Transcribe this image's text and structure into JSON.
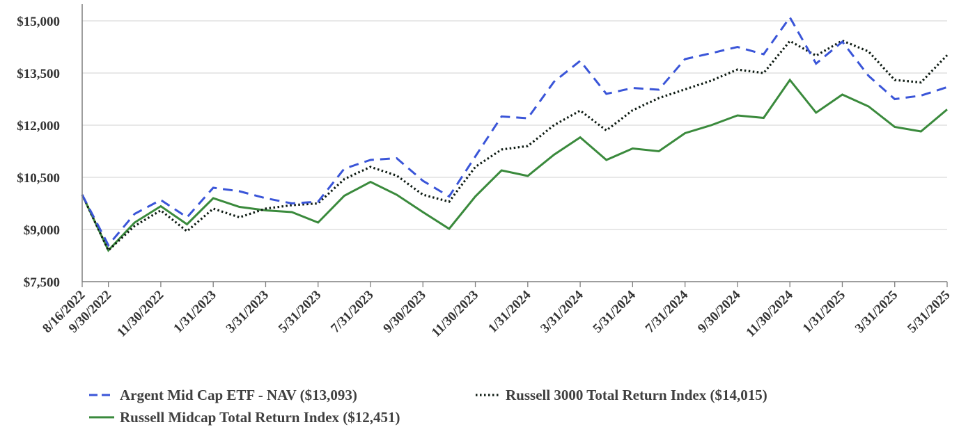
{
  "chart_data": {
    "type": "line",
    "x": [
      "8/16/2022",
      "9/30/2022",
      "10/31/2022",
      "11/30/2022",
      "12/31/2022",
      "1/31/2023",
      "2/28/2023",
      "3/31/2023",
      "4/30/2023",
      "5/31/2023",
      "6/30/2023",
      "7/31/2023",
      "8/31/2023",
      "9/30/2023",
      "10/31/2023",
      "11/30/2023",
      "12/31/2023",
      "1/31/2024",
      "2/29/2024",
      "3/31/2024",
      "4/30/2024",
      "5/31/2024",
      "6/30/2024",
      "7/31/2024",
      "8/31/2024",
      "9/30/2024",
      "10/31/2024",
      "11/30/2024",
      "12/31/2024",
      "1/31/2025",
      "2/28/2025",
      "3/31/2025",
      "4/30/2025",
      "5/31/2025"
    ],
    "xtick_labels": [
      "8/16/2022",
      "9/30/2022",
      "11/30/2022",
      "1/31/2023",
      "3/31/2023",
      "5/31/2023",
      "7/31/2023",
      "9/30/2023",
      "11/30/2023",
      "1/31/2024",
      "3/31/2024",
      "5/31/2024",
      "7/31/2024",
      "9/30/2024",
      "11/30/2024",
      "1/31/2025",
      "3/31/2025",
      "5/31/2025"
    ],
    "yticks": [
      7500,
      9000,
      10500,
      12000,
      13500,
      15000
    ],
    "ytick_labels": [
      "$7,500",
      "$9,000",
      "$10,500",
      "$12,000",
      "$13,500",
      "$15,000"
    ],
    "ylim": [
      7500,
      15500
    ],
    "grid": "horizontal",
    "legend_position": "bottom",
    "series": [
      {
        "name": "Argent Mid Cap ETF - NAV ($13,093)",
        "color": "#3a55d8",
        "style": "dashed",
        "values": [
          10000,
          8550,
          9450,
          9850,
          9350,
          10200,
          10100,
          9900,
          9750,
          9800,
          10750,
          11000,
          11050,
          10400,
          9950,
          11100,
          12250,
          12200,
          13250,
          13850,
          12900,
          13070,
          13020,
          13900,
          14070,
          14250,
          14040,
          15100,
          13770,
          14400,
          13420,
          12750,
          12850,
          13093
        ]
      },
      {
        "name": "Russell 3000 Total Return Index ($14,015)",
        "color": "#0d1a12",
        "style": "dotted",
        "values": [
          10000,
          8400,
          9100,
          9550,
          8950,
          9600,
          9350,
          9600,
          9700,
          9750,
          10450,
          10800,
          10550,
          10000,
          9800,
          10800,
          11300,
          11400,
          12000,
          12420,
          11850,
          12430,
          12780,
          13030,
          13280,
          13600,
          13500,
          14420,
          14000,
          14430,
          14120,
          13300,
          13230,
          14015
        ]
      },
      {
        "name": "Russell Midcap Total Return Index ($12,451)",
        "color": "#3a8a3c",
        "style": "solid",
        "values": [
          10000,
          8400,
          9200,
          9670,
          9150,
          9900,
          9650,
          9550,
          9500,
          9200,
          9970,
          10370,
          10000,
          9500,
          9020,
          9950,
          10700,
          10540,
          11150,
          11650,
          11000,
          11330,
          11250,
          11770,
          12000,
          12280,
          12210,
          13300,
          12360,
          12880,
          12540,
          11950,
          11820,
          12451
        ]
      }
    ]
  }
}
